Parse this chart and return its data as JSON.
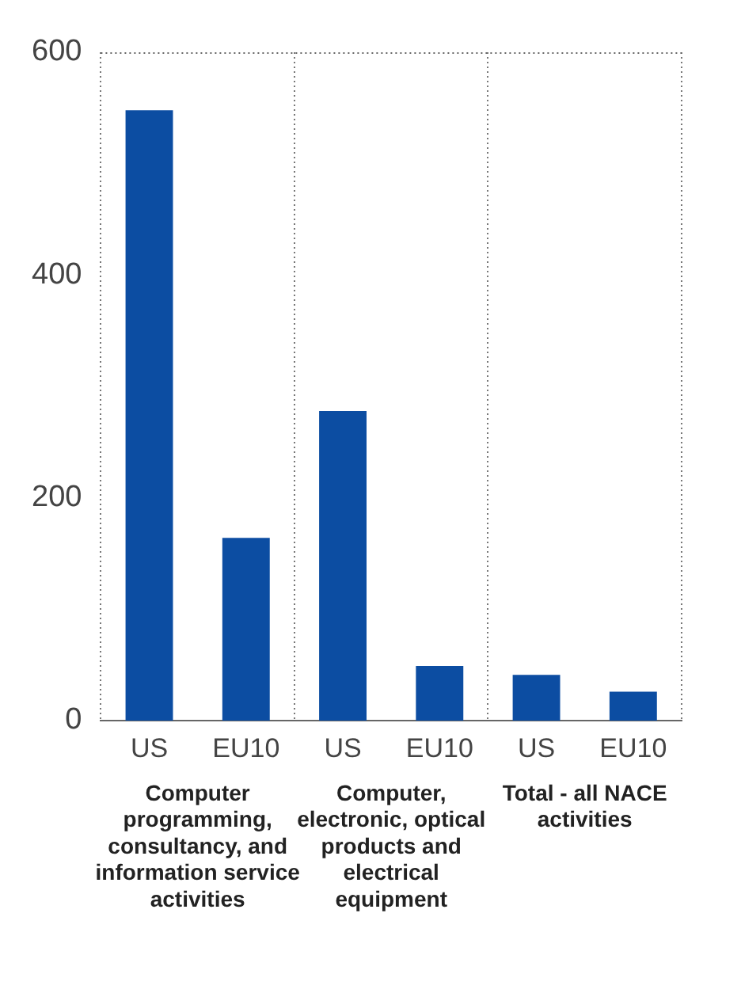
{
  "chart_data": {
    "type": "bar",
    "categories": [
      "Computer programming, consultancy, and information service activities",
      "Computer, electronic, optical products and electrical equipment",
      "Total - all NACE activities"
    ],
    "series": [
      {
        "name": "US",
        "color": "#0c4da2",
        "values": [
          548,
          278,
          41
        ]
      },
      {
        "name": "EU10",
        "color": "#0c4da2",
        "values": [
          164,
          49,
          26
        ]
      }
    ],
    "ylim": [
      0,
      600
    ],
    "yticks": [
      0,
      200,
      400,
      600
    ],
    "grid": "x"
  }
}
